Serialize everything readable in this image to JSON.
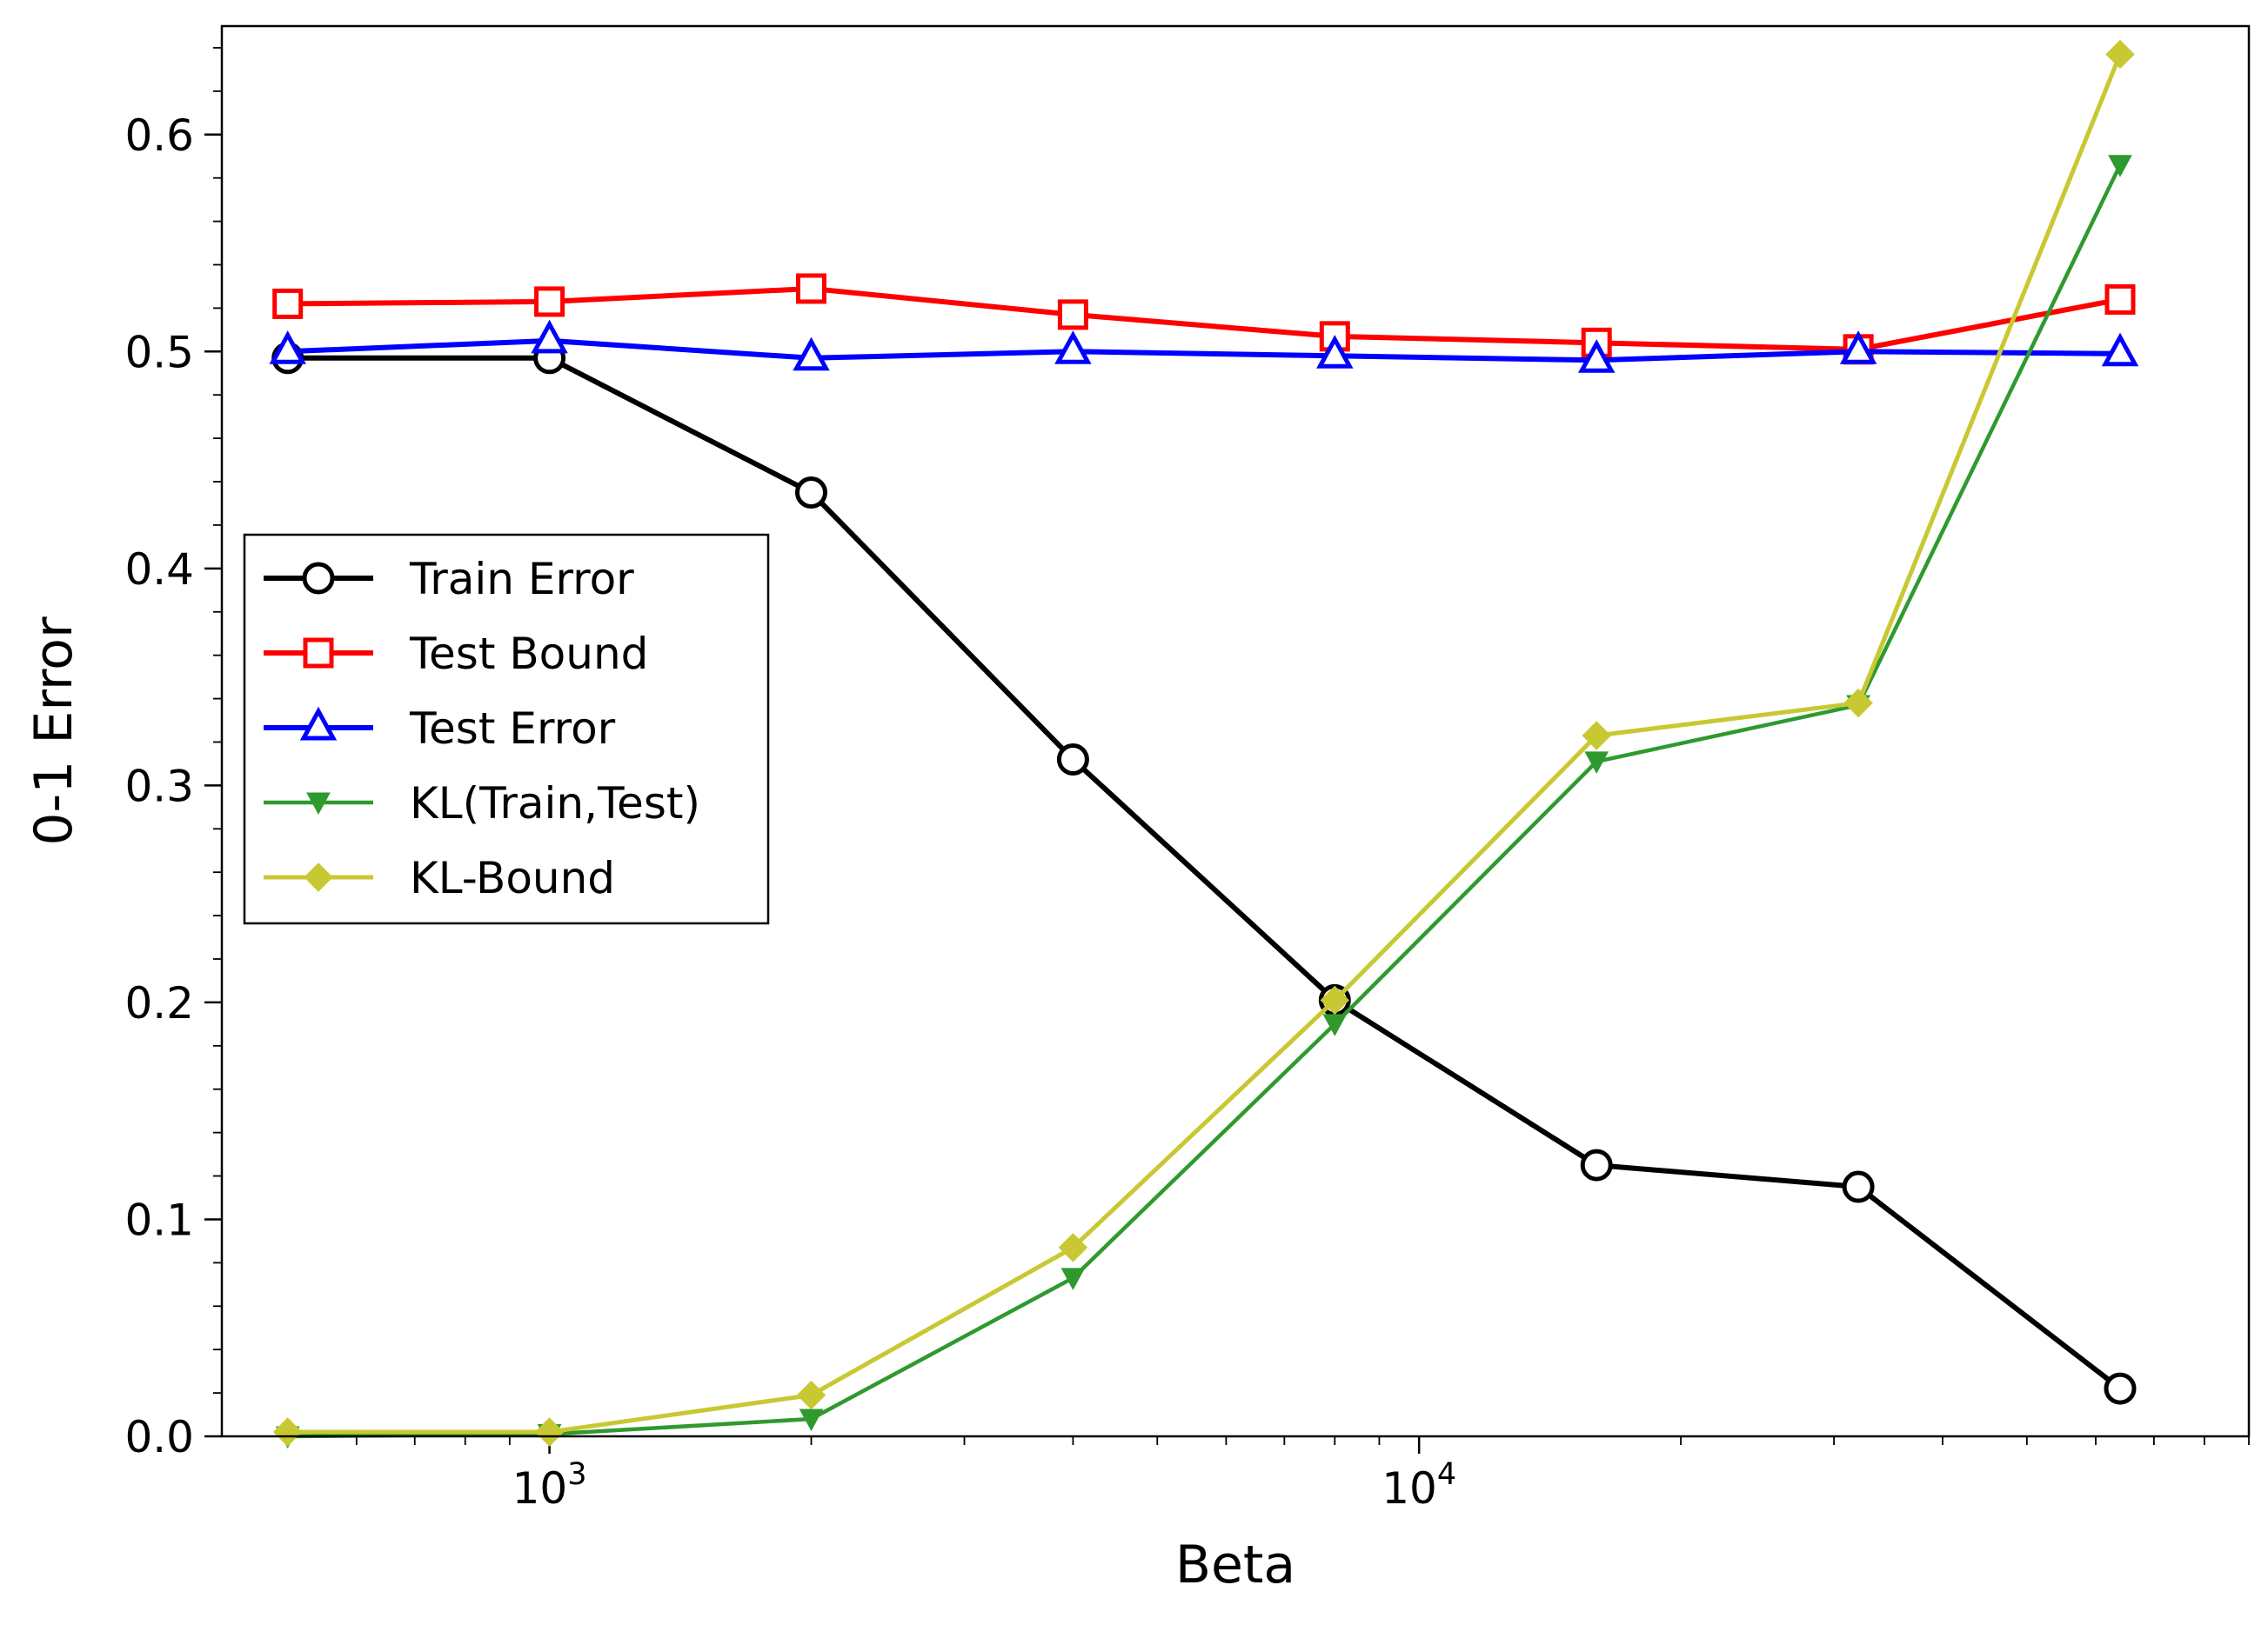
{
  "chart_data": {
    "type": "line",
    "xlabel": "Beta",
    "ylabel": "0-1 Error",
    "xscale": "log",
    "xlim": [
      420,
      90000
    ],
    "ylim": [
      0.0,
      0.65
    ],
    "grid": false,
    "legend_position": "center-left",
    "x_tick_labels": [
      {
        "value": 1000,
        "base": "10",
        "exp": "3"
      },
      {
        "value": 10000,
        "base": "10",
        "exp": "4"
      }
    ],
    "y_tick_labels": [
      "0.0",
      "0.1",
      "0.2",
      "0.3",
      "0.4",
      "0.5",
      "0.6"
    ],
    "x": [
      500,
      1000,
      2000,
      4000,
      8000,
      16000,
      32000,
      64000
    ],
    "series": [
      {
        "name": "Train Error",
        "color": "#000000",
        "marker": "circle",
        "values": [
          0.497,
          0.497,
          0.435,
          0.312,
          0.201,
          0.125,
          0.115,
          0.022
        ]
      },
      {
        "name": "Test Bound",
        "color": "#ff0000",
        "marker": "square",
        "values": [
          0.522,
          0.523,
          0.529,
          0.517,
          0.507,
          0.504,
          0.501,
          0.524
        ]
      },
      {
        "name": "Test Error",
        "color": "#0000ff",
        "marker": "triangle-up",
        "values": [
          0.5,
          0.505,
          0.497,
          0.5,
          0.498,
          0.496,
          0.5,
          0.499
        ]
      },
      {
        "name": "KL(Train,Test)",
        "color": "#2e9a2e",
        "marker": "triangle-down",
        "values": [
          0.0,
          0.001,
          0.008,
          0.073,
          0.19,
          0.311,
          0.337,
          0.586
        ]
      },
      {
        "name": "KL-Bound",
        "color": "#c8c832",
        "marker": "diamond",
        "values": [
          0.002,
          0.002,
          0.019,
          0.087,
          0.201,
          0.323,
          0.338,
          0.637
        ]
      }
    ]
  }
}
